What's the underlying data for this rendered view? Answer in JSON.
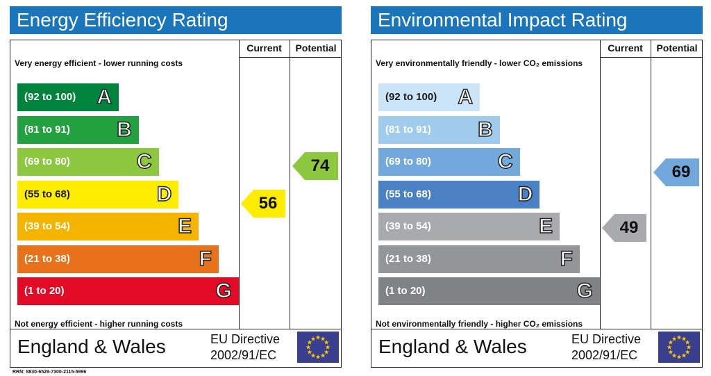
{
  "charts": [
    {
      "title": "Energy Efficiency Rating",
      "title_color": "#1B75BB",
      "headers": {
        "current": "Current",
        "potential": "Potential"
      },
      "top_note": "Very energy efficient - lower running costs",
      "bottom_note": "Not energy efficient - higher running costs",
      "bands": [
        {
          "range": "(92 to 100)",
          "letter": "A",
          "color": "#00843D"
        },
        {
          "range": "(81 to 91)",
          "letter": "B",
          "color": "#23A140"
        },
        {
          "range": "(69 to 80)",
          "letter": "C",
          "color": "#8DC63F"
        },
        {
          "range": "(55 to 68)",
          "letter": "D",
          "color": "#FFED00"
        },
        {
          "range": "(39 to 54)",
          "letter": "E",
          "color": "#F5B400"
        },
        {
          "range": "(21 to 38)",
          "letter": "F",
          "color": "#E8711C"
        },
        {
          "range": "(1 to 20)",
          "letter": "G",
          "color": "#E30A25"
        }
      ],
      "current": {
        "value": "56",
        "band": "D",
        "color": "#FFED00"
      },
      "potential": {
        "value": "74",
        "band": "C",
        "color": "#8DC63F"
      },
      "footer": {
        "country": "England & Wales",
        "directive_line1": "EU Directive",
        "directive_line2": "2002/91/EC"
      }
    },
    {
      "title": "Environmental Impact Rating",
      "title_color": "#1B75BB",
      "headers": {
        "current": "Current",
        "potential": "Potential"
      },
      "top_note": "Very environmentally friendly - lower CO₂ emissions",
      "bottom_note": "Not environmentally friendly - higher CO₂ emissions",
      "bands": [
        {
          "range": "(92 to 100)",
          "letter": "A",
          "color": "#CCE4F7"
        },
        {
          "range": "(81 to 91)",
          "letter": "B",
          "color": "#9FCBEC"
        },
        {
          "range": "(69 to 80)",
          "letter": "C",
          "color": "#72A8DC"
        },
        {
          "range": "(55 to 68)",
          "letter": "D",
          "color": "#4A80C4"
        },
        {
          "range": "(39 to 54)",
          "letter": "E",
          "color": "#A8AAAD"
        },
        {
          "range": "(21 to 38)",
          "letter": "F",
          "color": "#939598"
        },
        {
          "range": "(1 to 20)",
          "letter": "G",
          "color": "#808285"
        }
      ],
      "current": {
        "value": "49",
        "band": "E",
        "color": "#A8AAAD"
      },
      "potential": {
        "value": "69",
        "band": "C",
        "color": "#72A8DC"
      },
      "footer": {
        "country": "England & Wales",
        "directive_line1": "EU Directive",
        "directive_line2": "2002/91/EC"
      }
    }
  ],
  "rrn": "RRN: 8830-6529-7300-2115-5996",
  "chart_data": [
    {
      "type": "table",
      "title": "Energy Efficiency Rating",
      "columns": [
        "Current",
        "Potential"
      ],
      "categories": [
        "(92 to 100) A",
        "(81 to 91) B",
        "(69 to 80) C",
        "(55 to 68) D",
        "(39 to 54) E",
        "(21 to 38) F",
        "(1 to 20) G"
      ],
      "current": 56,
      "potential": 74
    },
    {
      "type": "table",
      "title": "Environmental Impact Rating",
      "columns": [
        "Current",
        "Potential"
      ],
      "categories": [
        "(92 to 100) A",
        "(81 to 91) B",
        "(69 to 80) C",
        "(55 to 68) D",
        "(39 to 54) E",
        "(21 to 38) F",
        "(1 to 20) G"
      ],
      "current": 49,
      "potential": 69
    }
  ]
}
